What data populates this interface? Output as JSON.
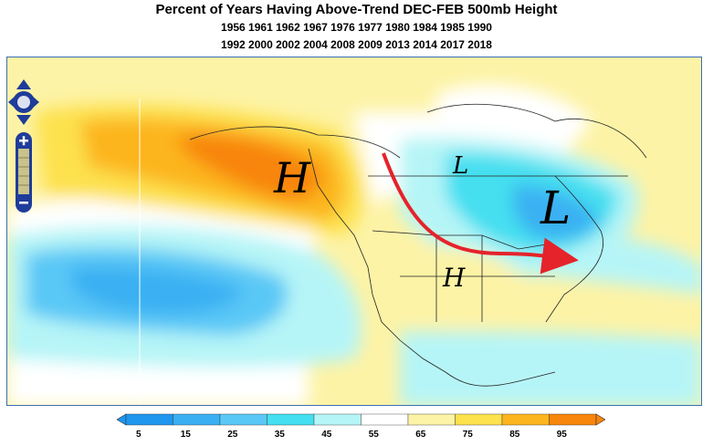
{
  "title": "Percent of Years Having Above-Trend DEC-FEB 500mb Height",
  "years_line1": "1956 1961 1962 1967 1976 1977 1980 1984 1985 1990",
  "years_line2": "1992 2000 2002 2004 2008 2009 2013 2014 2017 2018",
  "annotations": {
    "high_west": "H",
    "high_south": "H",
    "low_small": "L",
    "low_large": "L"
  },
  "map_controls": {
    "pan_icon": "four-way-arrow-icon",
    "zoom_in_icon": "plus-icon",
    "zoom_out_icon": "minus-icon"
  },
  "colorbar": {
    "ticks": [
      "5",
      "15",
      "25",
      "35",
      "45",
      "55",
      "65",
      "75",
      "85",
      "95"
    ],
    "colors": [
      "#1e96ee",
      "#3ab0f2",
      "#5ac8f6",
      "#44dff0",
      "#b6f5f7",
      "#ffffff",
      "#fdf3a6",
      "#fde14d",
      "#fcb51e",
      "#f8850c"
    ]
  },
  "colors": {
    "arrow": "#e5232b",
    "frame": "#3a6fb5",
    "controls": "#1f3c9a"
  }
}
